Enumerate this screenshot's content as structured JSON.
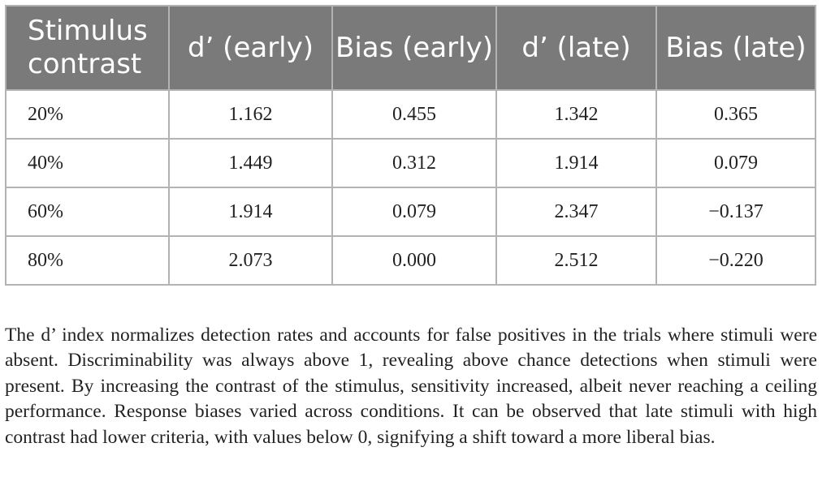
{
  "table": {
    "headers": [
      "Stimulus contrast",
      "d’ (early)",
      "Bias (early)",
      "d’ (late)",
      "Bias (late)"
    ],
    "rows": [
      [
        "20%",
        "1.162",
        "0.455",
        "1.342",
        "0.365"
      ],
      [
        "40%",
        "1.449",
        "0.312",
        "1.914",
        "0.079"
      ],
      [
        "60%",
        "1.914",
        "0.079",
        "2.347",
        "−0.137"
      ],
      [
        "80%",
        "2.073",
        "0.000",
        "2.512",
        "−0.220"
      ]
    ]
  },
  "caption": "The d’ index normalizes detection rates and accounts for false positives in the trials where stimuli were absent. Discriminability was always above 1, revealing above chance detections when stimuli were present. By increasing the contrast of the stimulus, sensitivity increased, albeit never reaching a ceiling performance. Response biases varied across conditions. It can be observed that late stimuli with high contrast had lower criteria, with values below 0, signifying a shift toward a more liberal bias.",
  "colors": {
    "header_bg": "#7a7a7a",
    "header_text": "#ffffff",
    "grid": "#b3b3b3",
    "body_text": "#222222"
  }
}
